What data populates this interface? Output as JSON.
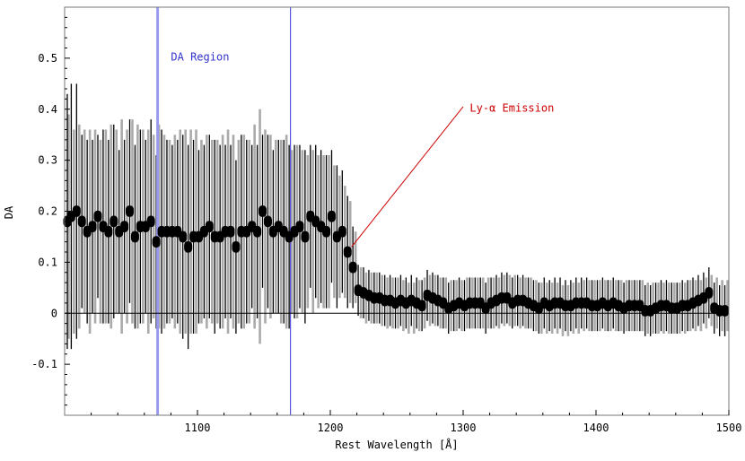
{
  "chart_data": {
    "type": "scatter",
    "xlabel": "Rest Wavelength [Å]",
    "ylabel": "DA",
    "xlim": [
      1000,
      1500
    ],
    "ylim": [
      -0.2,
      0.6
    ],
    "xticks": [
      1100,
      1200,
      1300,
      1400,
      1500
    ],
    "xtick_labels": [
      "1100",
      "1200",
      "1300",
      "1400",
      "1500"
    ],
    "yticks": [
      -0.1,
      0,
      0.1,
      0.2,
      0.3,
      0.4,
      0.5
    ],
    "ytick_labels": [
      "-0.1",
      "0",
      "0.1",
      "0.2",
      "0.3",
      "0.4",
      "0.5"
    ],
    "zero_line": true,
    "grid": false,
    "vlines": [
      {
        "x": 1070,
        "color": "#9999ee"
      },
      {
        "x": 1170,
        "color": "#5555dd"
      }
    ],
    "annotations": [
      {
        "text": "DA Region",
        "x": 1080,
        "y": 0.495,
        "color": "#3333cc"
      },
      {
        "text": "Ly-α Emission",
        "x": 1305,
        "y": 0.395,
        "color": "#cc0000",
        "arrow_from": [
          1300,
          0.405
        ],
        "arrow_to": [
          1216,
          0.13
        ]
      }
    ],
    "points_black": {
      "x": [
        1002,
        1005,
        1009,
        1013,
        1017,
        1021,
        1025,
        1029,
        1033,
        1037,
        1041,
        1045,
        1049,
        1053,
        1057,
        1061,
        1065,
        1069,
        1073,
        1077,
        1081,
        1085,
        1089,
        1093,
        1097,
        1101,
        1105,
        1109,
        1113,
        1117,
        1121,
        1125,
        1129,
        1133,
        1137,
        1141,
        1145,
        1149,
        1153,
        1157,
        1161,
        1165,
        1169,
        1173,
        1177,
        1181,
        1185,
        1189,
        1193,
        1197,
        1201,
        1205,
        1209,
        1213,
        1217,
        1221,
        1225,
        1229,
        1233,
        1237,
        1241,
        1245,
        1249,
        1253,
        1257,
        1261,
        1265,
        1269,
        1273,
        1277,
        1281,
        1285,
        1289,
        1293,
        1297,
        1301,
        1305,
        1309,
        1313,
        1317,
        1321,
        1325,
        1329,
        1333,
        1337,
        1341,
        1345,
        1349,
        1353,
        1357,
        1361,
        1365,
        1369,
        1373,
        1377,
        1381,
        1385,
        1389,
        1393,
        1397,
        1401,
        1405,
        1409,
        1413,
        1417,
        1421,
        1425,
        1429,
        1433,
        1437,
        1441,
        1445,
        1449,
        1453,
        1457,
        1461,
        1465,
        1469,
        1473,
        1477,
        1481,
        1485,
        1489,
        1493,
        1497
      ],
      "y": [
        0.18,
        0.19,
        0.2,
        0.18,
        0.16,
        0.17,
        0.19,
        0.17,
        0.16,
        0.18,
        0.16,
        0.17,
        0.2,
        0.15,
        0.17,
        0.17,
        0.18,
        0.14,
        0.16,
        0.16,
        0.16,
        0.16,
        0.15,
        0.13,
        0.15,
        0.15,
        0.16,
        0.17,
        0.15,
        0.15,
        0.16,
        0.16,
        0.13,
        0.16,
        0.16,
        0.17,
        0.16,
        0.2,
        0.18,
        0.16,
        0.17,
        0.16,
        0.15,
        0.16,
        0.17,
        0.15,
        0.19,
        0.18,
        0.17,
        0.16,
        0.19,
        0.15,
        0.16,
        0.12,
        0.09,
        0.045,
        0.04,
        0.035,
        0.03,
        0.03,
        0.025,
        0.025,
        0.02,
        0.025,
        0.02,
        0.025,
        0.02,
        0.015,
        0.035,
        0.03,
        0.025,
        0.02,
        0.01,
        0.015,
        0.02,
        0.015,
        0.02,
        0.02,
        0.02,
        0.01,
        0.02,
        0.025,
        0.03,
        0.03,
        0.02,
        0.025,
        0.025,
        0.02,
        0.015,
        0.01,
        0.02,
        0.015,
        0.02,
        0.02,
        0.015,
        0.015,
        0.02,
        0.02,
        0.02,
        0.015,
        0.015,
        0.02,
        0.015,
        0.02,
        0.015,
        0.01,
        0.015,
        0.015,
        0.015,
        0.005,
        0.005,
        0.01,
        0.015,
        0.015,
        0.01,
        0.01,
        0.015,
        0.015,
        0.02,
        0.025,
        0.03,
        0.04,
        0.01,
        0.005,
        0.005
      ],
      "err": [
        0.25,
        0.26,
        0.25,
        0.17,
        0.18,
        0.17,
        0.16,
        0.19,
        0.18,
        0.19,
        0.16,
        0.17,
        0.18,
        0.18,
        0.19,
        0.17,
        0.2,
        0.17,
        0.2,
        0.18,
        0.17,
        0.18,
        0.2,
        0.2,
        0.19,
        0.17,
        0.17,
        0.18,
        0.19,
        0.18,
        0.17,
        0.17,
        0.17,
        0.19,
        0.18,
        0.16,
        0.17,
        0.15,
        0.17,
        0.16,
        0.17,
        0.18,
        0.18,
        0.17,
        0.16,
        0.17,
        0.14,
        0.15,
        0.15,
        0.15,
        0.13,
        0.14,
        0.12,
        0.11,
        0.08,
        0.05,
        0.05,
        0.05,
        0.05,
        0.05,
        0.05,
        0.05,
        0.05,
        0.05,
        0.05,
        0.05,
        0.05,
        0.05,
        0.05,
        0.05,
        0.05,
        0.05,
        0.05,
        0.05,
        0.05,
        0.05,
        0.05,
        0.05,
        0.05,
        0.05,
        0.05,
        0.05,
        0.05,
        0.05,
        0.05,
        0.05,
        0.05,
        0.05,
        0.05,
        0.05,
        0.05,
        0.05,
        0.05,
        0.05,
        0.05,
        0.05,
        0.05,
        0.05,
        0.05,
        0.05,
        0.05,
        0.05,
        0.05,
        0.05,
        0.05,
        0.05,
        0.05,
        0.05,
        0.05,
        0.05,
        0.05,
        0.05,
        0.05,
        0.05,
        0.05,
        0.05,
        0.05,
        0.05,
        0.05,
        0.05,
        0.05,
        0.05,
        0.05,
        0.05,
        0.05
      ]
    },
    "points_gray": {
      "x": [
        1003,
        1007,
        1011,
        1015,
        1019,
        1023,
        1027,
        1031,
        1035,
        1039,
        1043,
        1047,
        1051,
        1055,
        1059,
        1063,
        1067,
        1071,
        1075,
        1079,
        1083,
        1087,
        1091,
        1095,
        1099,
        1103,
        1107,
        1111,
        1115,
        1119,
        1123,
        1127,
        1131,
        1135,
        1139,
        1143,
        1147,
        1151,
        1155,
        1159,
        1163,
        1167,
        1171,
        1175,
        1179,
        1183,
        1187,
        1191,
        1195,
        1199,
        1203,
        1207,
        1211,
        1215,
        1219,
        1223,
        1227,
        1231,
        1235,
        1239,
        1243,
        1247,
        1251,
        1255,
        1259,
        1263,
        1267,
        1271,
        1275,
        1279,
        1283,
        1287,
        1291,
        1295,
        1299,
        1303,
        1307,
        1311,
        1315,
        1319,
        1323,
        1327,
        1331,
        1335,
        1339,
        1343,
        1347,
        1351,
        1355,
        1359,
        1363,
        1367,
        1371,
        1375,
        1379,
        1383,
        1387,
        1391,
        1395,
        1399,
        1403,
        1407,
        1411,
        1415,
        1419,
        1423,
        1427,
        1431,
        1435,
        1439,
        1443,
        1447,
        1451,
        1455,
        1459,
        1463,
        1467,
        1471,
        1475,
        1479,
        1483,
        1487,
        1491,
        1495,
        1499
      ],
      "y": [
        0.17,
        0.16,
        0.17,
        0.18,
        0.16,
        0.17,
        0.16,
        0.17,
        0.17,
        0.18,
        0.17,
        0.17,
        0.18,
        0.17,
        0.17,
        0.16,
        0.17,
        0.17,
        0.16,
        0.16,
        0.16,
        0.16,
        0.16,
        0.16,
        0.16,
        0.16,
        0.16,
        0.16,
        0.16,
        0.16,
        0.16,
        0.16,
        0.16,
        0.16,
        0.16,
        0.17,
        0.17,
        0.17,
        0.17,
        0.17,
        0.16,
        0.16,
        0.16,
        0.16,
        0.16,
        0.16,
        0.16,
        0.16,
        0.16,
        0.16,
        0.16,
        0.15,
        0.14,
        0.12,
        0.09,
        0.04,
        0.03,
        0.03,
        0.03,
        0.025,
        0.02,
        0.02,
        0.02,
        0.015,
        0.01,
        0.01,
        0.015,
        0.02,
        0.025,
        0.025,
        0.02,
        0.02,
        0.015,
        0.015,
        0.015,
        0.02,
        0.02,
        0.02,
        0.02,
        0.02,
        0.02,
        0.02,
        0.025,
        0.025,
        0.025,
        0.02,
        0.02,
        0.02,
        0.015,
        0.01,
        0.01,
        0.01,
        0.01,
        0.005,
        0.005,
        0.01,
        0.01,
        0.015,
        0.015,
        0.015,
        0.015,
        0.015,
        0.015,
        0.015,
        0.015,
        0.015,
        0.015,
        0.015,
        0.015,
        0.01,
        0.01,
        0.01,
        0.01,
        0.01,
        0.01,
        0.01,
        0.01,
        0.015,
        0.015,
        0.015,
        0.02,
        0.025,
        0.02,
        0.015,
        0.015
      ],
      "err": [
        0.22,
        0.2,
        0.2,
        0.18,
        0.2,
        0.19,
        0.18,
        0.19,
        0.2,
        0.18,
        0.21,
        0.19,
        0.2,
        0.2,
        0.19,
        0.2,
        0.18,
        0.2,
        0.19,
        0.18,
        0.19,
        0.2,
        0.2,
        0.2,
        0.2,
        0.18,
        0.19,
        0.18,
        0.18,
        0.19,
        0.2,
        0.19,
        0.18,
        0.19,
        0.18,
        0.2,
        0.23,
        0.19,
        0.18,
        0.17,
        0.18,
        0.19,
        0.16,
        0.17,
        0.16,
        0.15,
        0.16,
        0.15,
        0.15,
        0.15,
        0.13,
        0.12,
        0.11,
        0.1,
        0.07,
        0.05,
        0.05,
        0.05,
        0.05,
        0.05,
        0.05,
        0.05,
        0.05,
        0.05,
        0.05,
        0.05,
        0.05,
        0.05,
        0.05,
        0.05,
        0.05,
        0.05,
        0.05,
        0.05,
        0.05,
        0.05,
        0.05,
        0.05,
        0.05,
        0.05,
        0.05,
        0.05,
        0.05,
        0.05,
        0.05,
        0.05,
        0.05,
        0.05,
        0.05,
        0.05,
        0.05,
        0.05,
        0.05,
        0.05,
        0.05,
        0.05,
        0.05,
        0.05,
        0.05,
        0.05,
        0.05,
        0.05,
        0.05,
        0.05,
        0.05,
        0.05,
        0.05,
        0.05,
        0.05,
        0.05,
        0.05,
        0.05,
        0.05,
        0.05,
        0.05,
        0.05,
        0.05,
        0.05,
        0.05,
        0.05,
        0.05,
        0.05,
        0.05,
        0.05,
        0.05
      ]
    },
    "colors": {
      "points": "#000000",
      "errorbar_black": "#000000",
      "errorbar_gray": "#aaaaaa",
      "region_line_1": "#9999ee",
      "region_line_2": "#5555dd",
      "region_label": "#3333cc",
      "emission_label": "#cc0000"
    }
  }
}
